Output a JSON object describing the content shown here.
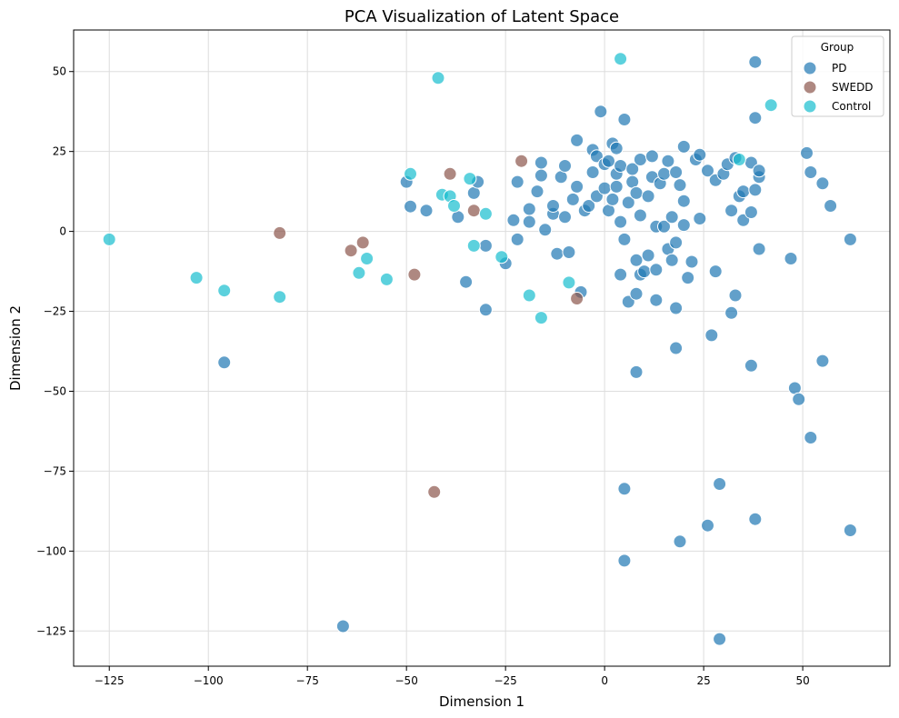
{
  "chart_data": {
    "type": "scatter",
    "title": "PCA Visualization of Latent Space",
    "xlabel": "Dimension 1",
    "ylabel": "Dimension 2",
    "xlim": [
      -134,
      72
    ],
    "ylim": [
      -136,
      63
    ],
    "xticks": [
      -125,
      -100,
      -75,
      -50,
      -25,
      0,
      25,
      50
    ],
    "yticks": [
      -125,
      -100,
      -75,
      -50,
      -25,
      0,
      25,
      50
    ],
    "grid": true,
    "legend": {
      "title": "Group",
      "placement": "top-right"
    },
    "series": [
      {
        "name": "PD",
        "color": "#1f77b4",
        "points": [
          [
            -50,
            15.5
          ],
          [
            -49,
            7.8
          ],
          [
            -45,
            6.5
          ],
          [
            -37,
            4.5
          ],
          [
            -35,
            -15.8
          ],
          [
            -33,
            12
          ],
          [
            -32,
            15.5
          ],
          [
            -30,
            -4.5
          ],
          [
            -30,
            -24.5
          ],
          [
            -23,
            3.5
          ],
          [
            -22,
            -2.5
          ],
          [
            -22,
            15.5
          ],
          [
            -19,
            7
          ],
          [
            -19,
            3
          ],
          [
            -17,
            12.5
          ],
          [
            -16,
            17.5
          ],
          [
            -16,
            21.5
          ],
          [
            -15,
            0.5
          ],
          [
            -13,
            5.5
          ],
          [
            -13,
            8
          ],
          [
            -12,
            -7
          ],
          [
            -11,
            17
          ],
          [
            -10,
            4.5
          ],
          [
            -10,
            20.5
          ],
          [
            -9,
            -6.5
          ],
          [
            -8,
            10
          ],
          [
            -7,
            14
          ],
          [
            -7,
            28.5
          ],
          [
            -6,
            -19
          ],
          [
            -5,
            6.5
          ],
          [
            -4,
            8
          ],
          [
            -3,
            18.5
          ],
          [
            -3,
            25.5
          ],
          [
            -2,
            11
          ],
          [
            -2,
            23.5
          ],
          [
            -1,
            37.5
          ],
          [
            0,
            13.5
          ],
          [
            0,
            21
          ],
          [
            1,
            6.5
          ],
          [
            1,
            22
          ],
          [
            2,
            10
          ],
          [
            2,
            27.5
          ],
          [
            3,
            14
          ],
          [
            3,
            26
          ],
          [
            3,
            18
          ],
          [
            4,
            -13.5
          ],
          [
            4,
            3
          ],
          [
            4,
            20.5
          ],
          [
            5,
            -2.5
          ],
          [
            5,
            35
          ],
          [
            6,
            -22
          ],
          [
            6,
            9
          ],
          [
            7,
            15.5
          ],
          [
            7,
            19.5
          ],
          [
            8,
            -9
          ],
          [
            8,
            -19.5
          ],
          [
            8,
            12
          ],
          [
            9,
            5
          ],
          [
            9,
            22.5
          ],
          [
            9,
            -13.5
          ],
          [
            10,
            -12.5
          ],
          [
            11,
            -7.5
          ],
          [
            11,
            11
          ],
          [
            12,
            17
          ],
          [
            12,
            23.5
          ],
          [
            13,
            -12
          ],
          [
            13,
            1.5
          ],
          [
            13,
            -21.5
          ],
          [
            14,
            15
          ],
          [
            15,
            18
          ],
          [
            15,
            1.5
          ],
          [
            16,
            -5.5
          ],
          [
            16,
            22
          ],
          [
            17,
            -9
          ],
          [
            17,
            4.5
          ],
          [
            18,
            -3.5
          ],
          [
            18,
            -24
          ],
          [
            18,
            18.5
          ],
          [
            19,
            14.5
          ],
          [
            20,
            9.5
          ],
          [
            20,
            26.5
          ],
          [
            20,
            2
          ],
          [
            21,
            -14.5
          ],
          [
            22,
            -9.5
          ],
          [
            23,
            22.5
          ],
          [
            24,
            4
          ],
          [
            24,
            24
          ],
          [
            26,
            19
          ],
          [
            27,
            -32.5
          ],
          [
            28,
            -12.5
          ],
          [
            28,
            16
          ],
          [
            30,
            18
          ],
          [
            31,
            21
          ],
          [
            32,
            6.5
          ],
          [
            32,
            -25.5
          ],
          [
            33,
            -20
          ],
          [
            33,
            23
          ],
          [
            34,
            11
          ],
          [
            35,
            12.5
          ],
          [
            35,
            3.5
          ],
          [
            37,
            21.5
          ],
          [
            37,
            6
          ],
          [
            38,
            35.5
          ],
          [
            38,
            13
          ],
          [
            38,
            53
          ],
          [
            39,
            -5.5
          ],
          [
            39,
            17
          ],
          [
            39,
            19
          ],
          [
            37,
            -42
          ],
          [
            47,
            -8.5
          ],
          [
            48,
            -49
          ],
          [
            49,
            -52.5
          ],
          [
            51,
            24.5
          ],
          [
            52,
            18.5
          ],
          [
            52,
            -64.5
          ],
          [
            55,
            15
          ],
          [
            55,
            -40.5
          ],
          [
            57,
            8
          ],
          [
            62,
            -2.5
          ],
          [
            62,
            -93.5
          ],
          [
            -96,
            -41
          ],
          [
            -66,
            -123.5
          ],
          [
            5,
            -80.5
          ],
          [
            5,
            -103
          ],
          [
            8,
            -44
          ],
          [
            18,
            -36.5
          ],
          [
            19,
            -97
          ],
          [
            26,
            -92
          ],
          [
            29,
            -79
          ],
          [
            29,
            -127.5
          ],
          [
            38,
            -90
          ],
          [
            -25,
            -10
          ]
        ]
      },
      {
        "name": "SWEDD",
        "color": "#8c564b",
        "points": [
          [
            -82,
            -0.5
          ],
          [
            -64,
            -6
          ],
          [
            -61,
            -3.5
          ],
          [
            -48,
            -13.5
          ],
          [
            -39,
            18
          ],
          [
            -33,
            6.5
          ],
          [
            -21,
            22
          ],
          [
            -7,
            -21
          ],
          [
            -43,
            -81.5
          ]
        ]
      },
      {
        "name": "Control",
        "color": "#17becf",
        "points": [
          [
            -125,
            -2.5
          ],
          [
            -103,
            -14.5
          ],
          [
            -96,
            -18.5
          ],
          [
            -82,
            -20.5
          ],
          [
            -62,
            -13
          ],
          [
            -60,
            -8.5
          ],
          [
            -55,
            -15
          ],
          [
            -49,
            18
          ],
          [
            -42,
            48
          ],
          [
            -41,
            11.5
          ],
          [
            -39,
            11
          ],
          [
            -38,
            8
          ],
          [
            -34,
            16.5
          ],
          [
            -33,
            -4.5
          ],
          [
            -30,
            5.5
          ],
          [
            -26,
            -8
          ],
          [
            -19,
            -20
          ],
          [
            -16,
            -27
          ],
          [
            -9,
            -16
          ],
          [
            4,
            54
          ],
          [
            34,
            22.5
          ],
          [
            42,
            39.5
          ]
        ]
      }
    ]
  }
}
